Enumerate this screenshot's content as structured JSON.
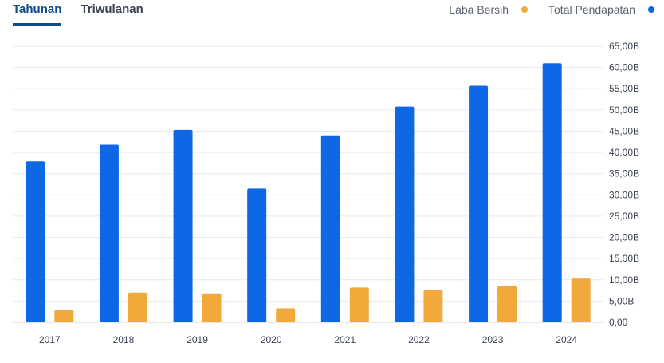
{
  "tabs": [
    {
      "label": "Tahunan",
      "active": true
    },
    {
      "label": "Triwulanan",
      "active": false
    }
  ],
  "legend": [
    {
      "label": "Laba Bersih",
      "color": "#f2a93b"
    },
    {
      "label": "Total Pendapatan",
      "color": "#0e68e6"
    }
  ],
  "chart_data": {
    "type": "bar",
    "categories": [
      "2017",
      "2018",
      "2019",
      "2020",
      "2021",
      "2022",
      "2023",
      "2024"
    ],
    "series": [
      {
        "name": "Total Pendapatan",
        "color": "#0e68e6",
        "values": [
          37.9,
          41.8,
          45.3,
          31.5,
          44.0,
          50.8,
          55.7,
          61.0
        ]
      },
      {
        "name": "Laba Bersih",
        "color": "#f2a93b",
        "values": [
          2.9,
          7.0,
          6.8,
          3.3,
          8.2,
          7.6,
          8.6,
          10.3
        ]
      }
    ],
    "ylim": [
      0,
      65
    ],
    "yticks": [
      "0,00",
      "5,00B",
      "10,00B",
      "15,00B",
      "20,00B",
      "25,00B",
      "30,00B",
      "35,00B",
      "40,00B",
      "45,00B",
      "50,00B",
      "55,00B",
      "60,00B",
      "65,00B"
    ],
    "grid": true,
    "legend_position": "top-right"
  }
}
